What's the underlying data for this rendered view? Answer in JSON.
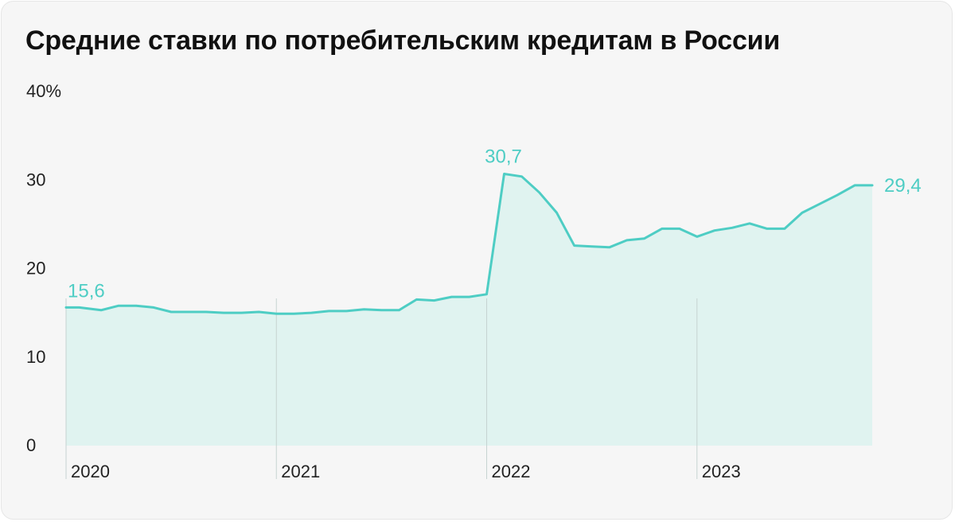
{
  "title": "Средние ставки по потребительским кредитам в России",
  "colors": {
    "line": "#4ecdc4",
    "area": "#e0f3f0",
    "year_divider": "#c6d3d1",
    "text": "#222222"
  },
  "chart_data": {
    "type": "area",
    "title": "Средние ставки по потребительским кредитам в России",
    "xlabel": "",
    "ylabel": "",
    "ylim": [
      0,
      40
    ],
    "x_range": [
      2020.0,
      2023.8333
    ],
    "y_ticks": [
      {
        "value": 40,
        "label": "40%"
      },
      {
        "value": 30,
        "label": "30"
      },
      {
        "value": 20,
        "label": "20"
      },
      {
        "value": 10,
        "label": "10"
      },
      {
        "value": 0,
        "label": "0"
      }
    ],
    "x_ticks": [
      {
        "value": 2020,
        "label": "2020"
      },
      {
        "value": 2021,
        "label": "2021"
      },
      {
        "value": 2022,
        "label": "2022"
      },
      {
        "value": 2023,
        "label": "2023"
      }
    ],
    "grid": false,
    "legend": "none",
    "series": [
      {
        "x": [
          2020.0,
          2020.0625,
          2020.1667,
          2020.25,
          2020.3333,
          2020.4167,
          2020.5,
          2020.5833,
          2020.6667,
          2020.75,
          2020.8333,
          2020.9167,
          2021.0,
          2021.0833,
          2021.1667,
          2021.25,
          2021.3333,
          2021.4167,
          2021.5,
          2021.5833,
          2021.6667,
          2021.75,
          2021.8333,
          2021.9167,
          2022.0,
          2022.0833,
          2022.1667,
          2022.25,
          2022.3333,
          2022.4167,
          2022.5,
          2022.5833,
          2022.6667,
          2022.75,
          2022.8333,
          2022.875,
          2022.9167,
          2023.0,
          2023.0833,
          2023.1667,
          2023.25,
          2023.3333,
          2023.4167,
          2023.5,
          2023.5833,
          2023.6667,
          2023.75,
          2023.8333
        ],
        "values": [
          15.6,
          15.6,
          15.3,
          15.8,
          15.8,
          15.6,
          15.1,
          15.1,
          15.1,
          15.0,
          15.0,
          15.1,
          14.9,
          14.9,
          15.0,
          15.2,
          15.2,
          15.4,
          15.3,
          15.3,
          16.5,
          16.4,
          16.8,
          16.8,
          17.1,
          30.7,
          30.4,
          28.6,
          26.3,
          22.6,
          22.5,
          22.4,
          23.2,
          23.4,
          24.5,
          24.5,
          24.5,
          23.6,
          24.3,
          24.6,
          25.1,
          24.5,
          24.5,
          26.3,
          27.3,
          28.3,
          29.4,
          29.4
        ],
        "point_labels": [
          {
            "index": 0,
            "text": "15,6"
          },
          {
            "index": 25,
            "text": "30,7"
          },
          {
            "index": 47,
            "text": "29,4"
          }
        ]
      }
    ]
  }
}
